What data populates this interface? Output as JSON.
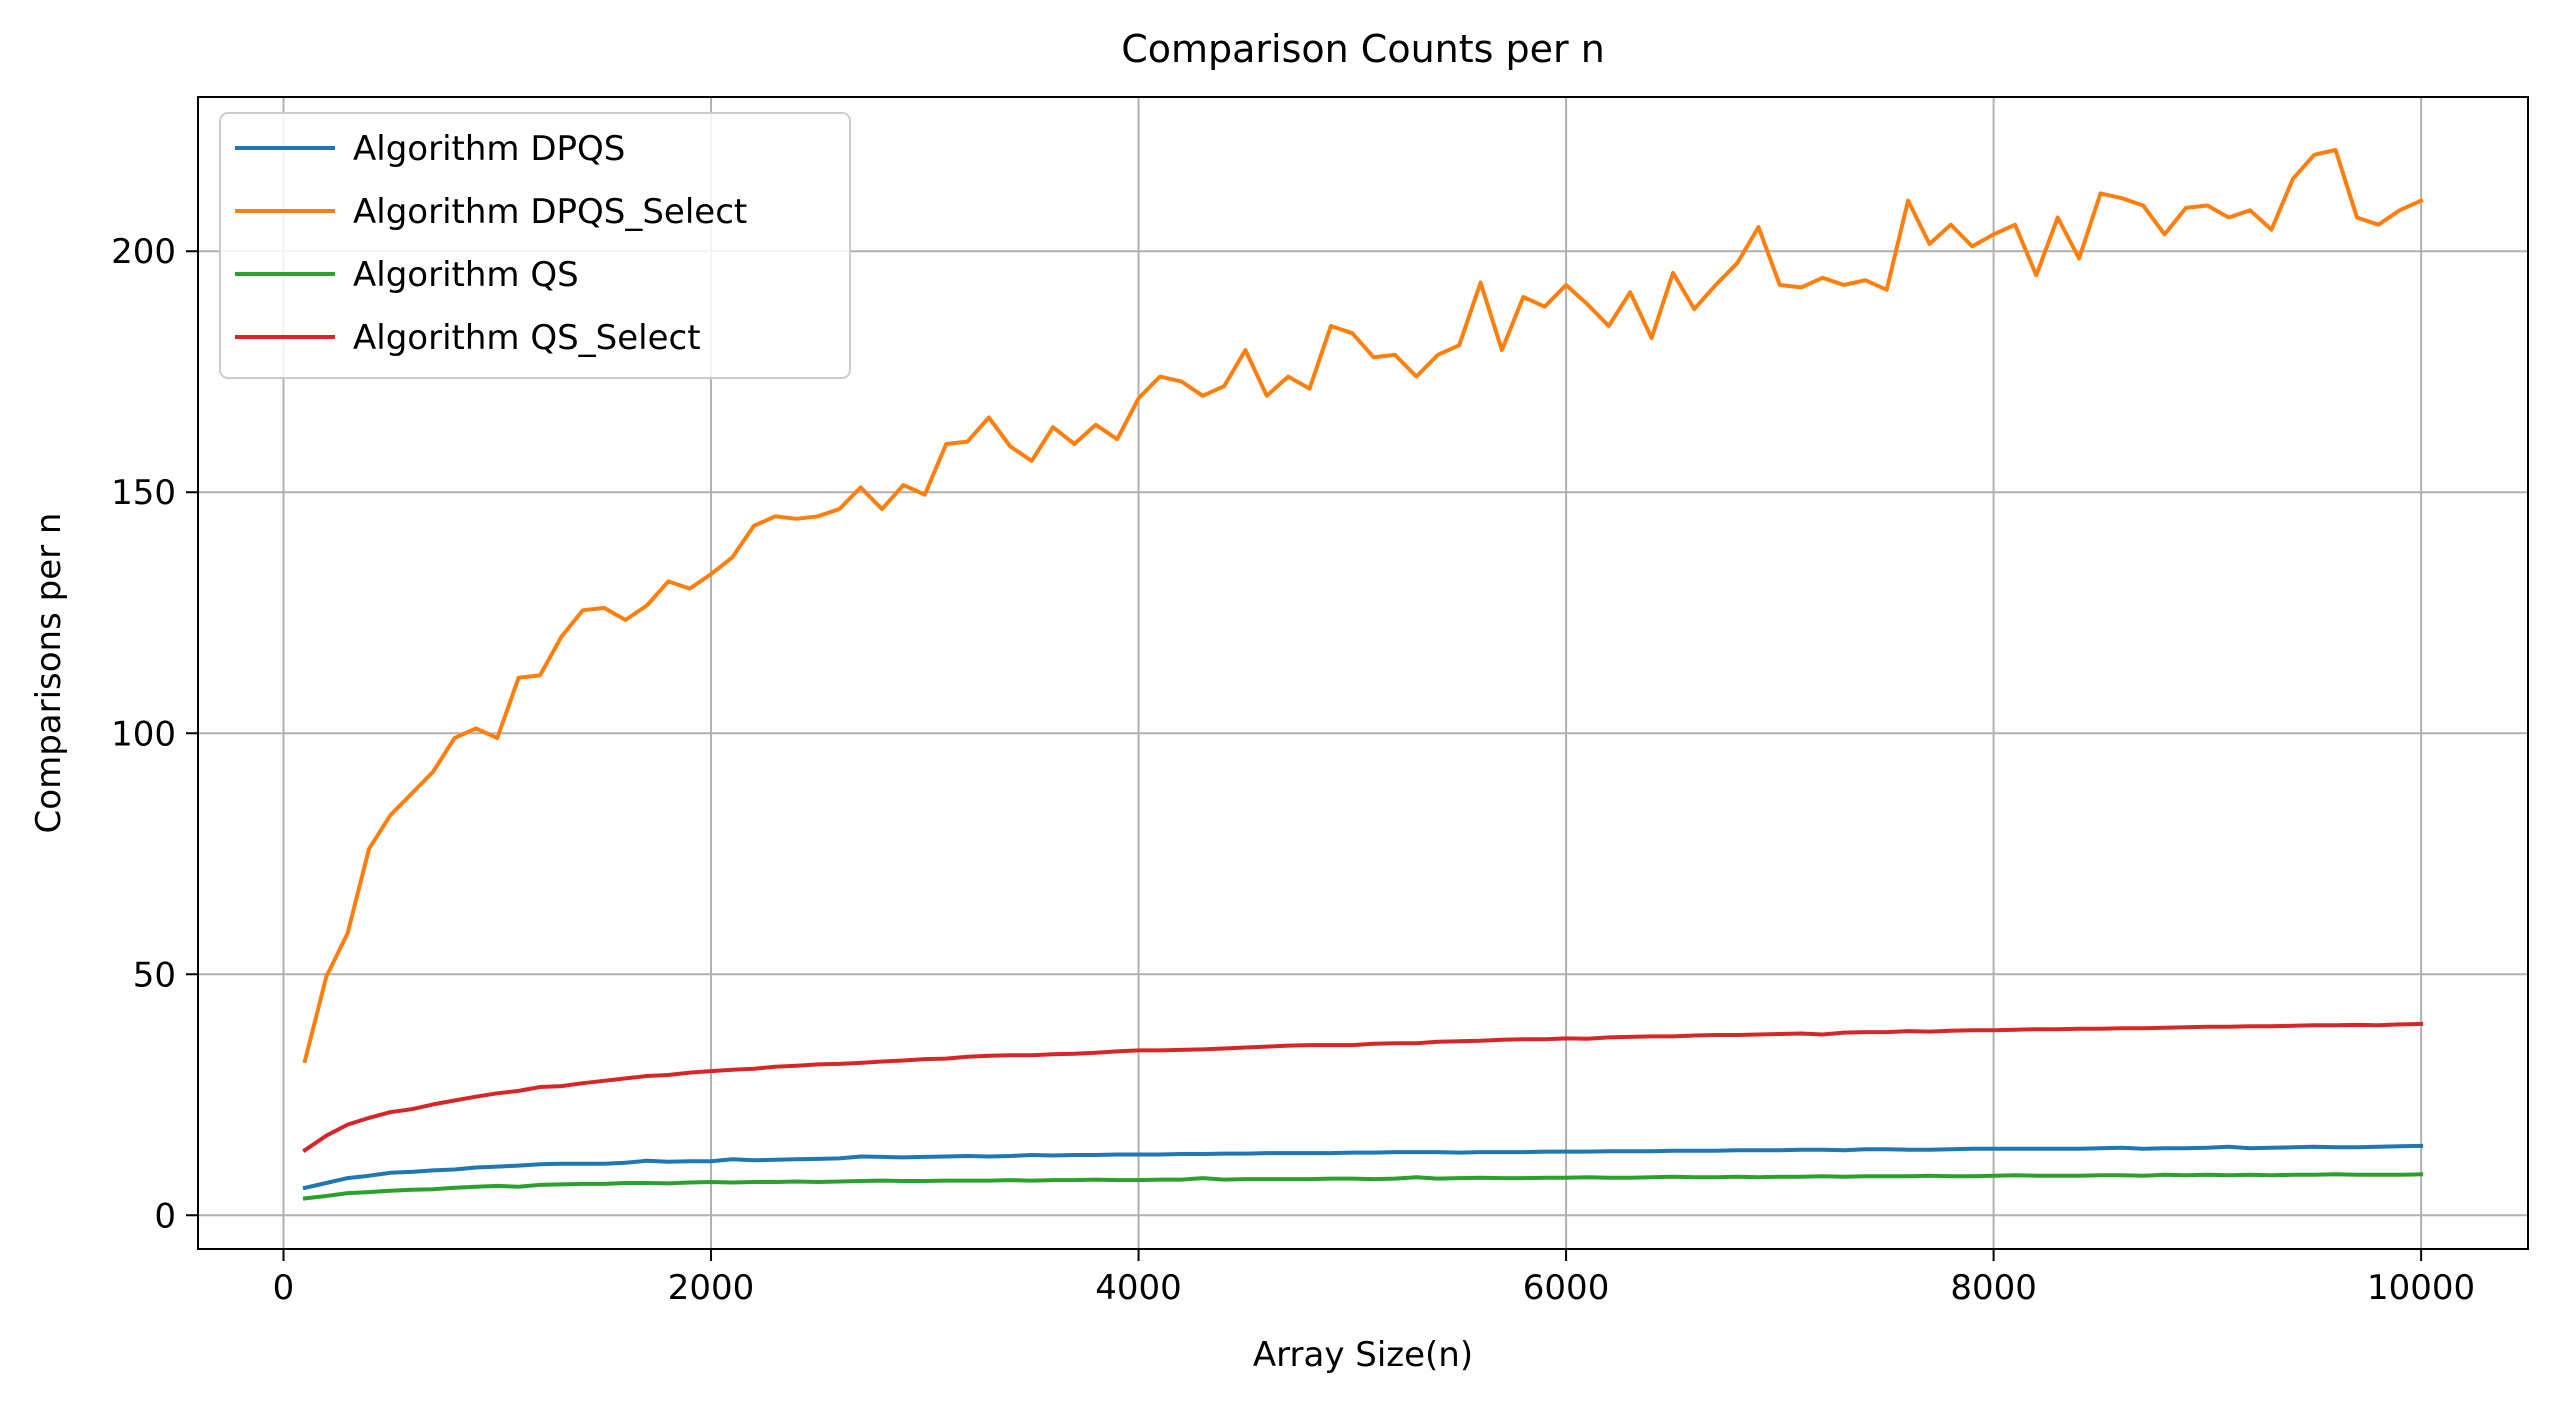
{
  "chart_data": {
    "type": "line",
    "title": "Comparison Counts per n",
    "xlabel": "Array Size(n)",
    "ylabel": "Comparisons per n",
    "xlim": [
      -400,
      10500
    ],
    "ylim": [
      -7,
      232
    ],
    "xticks": [
      0,
      2000,
      4000,
      6000,
      8000,
      10000
    ],
    "xtick_labels": [
      "0",
      "2000",
      "4000",
      "6000",
      "8000",
      "10000"
    ],
    "yticks": [
      0,
      50,
      100,
      150,
      200
    ],
    "ytick_labels": [
      "0",
      "50",
      "100",
      "150",
      "200"
    ],
    "grid": true,
    "legend_position": "top-left",
    "x": [
      100,
      200,
      300,
      400,
      500,
      600,
      700,
      800,
      900,
      1000,
      1100,
      1200,
      1300,
      1400,
      1500,
      1600,
      1700,
      1800,
      1900,
      2000,
      2100,
      2200,
      2300,
      2400,
      2500,
      2600,
      2700,
      2800,
      2900,
      3000,
      3100,
      3200,
      3300,
      3400,
      3500,
      3600,
      3700,
      3800,
      3900,
      4000,
      4100,
      4200,
      4300,
      4400,
      4500,
      4600,
      4700,
      4800,
      4900,
      5000,
      5100,
      5200,
      5300,
      5400,
      5500,
      5600,
      5700,
      5800,
      5900,
      6000,
      6100,
      6200,
      6300,
      6400,
      6500,
      6600,
      6700,
      6800,
      6900,
      7000,
      7100,
      7200,
      7300,
      7400,
      7500,
      7600,
      7700,
      7800,
      7900,
      8000,
      8100,
      8200,
      8300,
      8400,
      8500,
      8600,
      8700,
      8800,
      8900,
      9000,
      9100,
      9200,
      9300,
      9400,
      9500,
      9600,
      9700,
      9800,
      9900,
      10000
    ],
    "series": [
      {
        "name": "Algorithm DPQS",
        "color": "#1f77b4",
        "values": [
          5.7,
          6.7,
          7.7,
          8.2,
          8.8,
          9.0,
          9.3,
          9.5,
          9.9,
          10.1,
          10.3,
          10.6,
          10.7,
          10.7,
          10.7,
          10.9,
          11.3,
          11.1,
          11.2,
          11.2,
          11.6,
          11.4,
          11.5,
          11.6,
          11.7,
          11.8,
          12.2,
          12.1,
          12.0,
          12.1,
          12.2,
          12.3,
          12.2,
          12.3,
          12.5,
          12.4,
          12.5,
          12.5,
          12.6,
          12.6,
          12.6,
          12.7,
          12.7,
          12.8,
          12.8,
          12.9,
          12.9,
          12.9,
          12.9,
          13.0,
          13.0,
          13.1,
          13.1,
          13.1,
          13.0,
          13.1,
          13.1,
          13.1,
          13.2,
          13.2,
          13.2,
          13.3,
          13.3,
          13.3,
          13.4,
          13.4,
          13.4,
          13.5,
          13.5,
          13.5,
          13.6,
          13.6,
          13.5,
          13.7,
          13.7,
          13.6,
          13.6,
          13.7,
          13.8,
          13.8,
          13.8,
          13.8,
          13.8,
          13.8,
          13.9,
          14.0,
          13.8,
          13.9,
          13.9,
          14.0,
          14.2,
          13.9,
          14.0,
          14.1,
          14.2,
          14.1,
          14.1,
          14.2,
          14.3,
          14.4
        ]
      },
      {
        "name": "Algorithm DPQS_Select",
        "color": "#ff7f0e",
        "values": [
          32.0,
          49.5,
          58.5,
          76.0,
          83.0,
          87.5,
          92.0,
          99.0,
          101.0,
          99.0,
          111.5,
          112.0,
          120.0,
          125.5,
          126.0,
          123.5,
          126.5,
          131.5,
          130.0,
          133.0,
          136.5,
          143.0,
          145.0,
          144.5,
          145.0,
          146.5,
          151.0,
          146.5,
          151.5,
          149.5,
          160.0,
          160.5,
          165.5,
          159.5,
          156.5,
          163.5,
          160.0,
          164.0,
          161.0,
          169.5,
          174.0,
          173.0,
          170.0,
          172.0,
          179.5,
          170.0,
          174.0,
          171.5,
          184.5,
          183.0,
          178.0,
          178.5,
          174.0,
          178.5,
          180.5,
          193.5,
          179.5,
          190.5,
          188.5,
          193.0,
          189.0,
          184.5,
          191.5,
          182.0,
          195.5,
          188.0,
          193.0,
          197.5,
          205.0,
          193.0,
          192.5,
          194.5,
          193.0,
          194.0,
          192.0,
          210.5,
          201.5,
          205.5,
          201.0,
          203.5,
          205.5,
          195.0,
          207.0,
          198.5,
          212.0,
          211.0,
          209.5,
          203.5,
          209.0,
          209.5,
          207.0,
          208.5,
          204.5,
          215.0,
          220.0,
          221.0,
          207.0,
          205.5,
          208.5,
          210.5
        ]
      },
      {
        "name": "Algorithm QS",
        "color": "#2ca02c",
        "values": [
          3.5,
          4.0,
          4.6,
          4.8,
          5.1,
          5.3,
          5.4,
          5.7,
          5.9,
          6.1,
          5.9,
          6.3,
          6.4,
          6.5,
          6.5,
          6.7,
          6.7,
          6.6,
          6.8,
          6.9,
          6.8,
          6.9,
          6.9,
          7.0,
          6.9,
          7.0,
          7.1,
          7.2,
          7.1,
          7.1,
          7.2,
          7.2,
          7.2,
          7.3,
          7.2,
          7.3,
          7.3,
          7.4,
          7.3,
          7.3,
          7.4,
          7.4,
          7.7,
          7.4,
          7.5,
          7.5,
          7.5,
          7.5,
          7.6,
          7.6,
          7.5,
          7.6,
          7.9,
          7.6,
          7.7,
          7.8,
          7.7,
          7.7,
          7.8,
          7.8,
          7.9,
          7.8,
          7.8,
          7.9,
          8.0,
          7.9,
          7.9,
          8.0,
          7.9,
          8.0,
          8.0,
          8.1,
          8.0,
          8.1,
          8.1,
          8.1,
          8.2,
          8.1,
          8.1,
          8.2,
          8.3,
          8.2,
          8.2,
          8.2,
          8.3,
          8.3,
          8.2,
          8.4,
          8.3,
          8.4,
          8.3,
          8.4,
          8.3,
          8.4,
          8.4,
          8.5,
          8.4,
          8.4,
          8.4,
          8.5
        ]
      },
      {
        "name": "Algorithm QS_Select",
        "color": "#d62728",
        "values": [
          13.5,
          16.5,
          18.8,
          20.2,
          21.4,
          22.0,
          23.0,
          23.8,
          24.6,
          25.3,
          25.8,
          26.6,
          26.8,
          27.4,
          27.9,
          28.4,
          28.9,
          29.1,
          29.6,
          29.9,
          30.2,
          30.4,
          30.8,
          31.0,
          31.3,
          31.4,
          31.6,
          31.9,
          32.1,
          32.4,
          32.5,
          32.9,
          33.1,
          33.2,
          33.2,
          33.4,
          33.5,
          33.7,
          34.0,
          34.2,
          34.2,
          34.3,
          34.4,
          34.6,
          34.8,
          35.0,
          35.2,
          35.3,
          35.3,
          35.3,
          35.6,
          35.7,
          35.7,
          36.0,
          36.1,
          36.2,
          36.4,
          36.5,
          36.5,
          36.7,
          36.6,
          36.9,
          37.0,
          37.1,
          37.1,
          37.3,
          37.4,
          37.4,
          37.5,
          37.6,
          37.7,
          37.5,
          37.9,
          38.0,
          38.0,
          38.2,
          38.1,
          38.3,
          38.4,
          38.4,
          38.5,
          38.6,
          38.6,
          38.7,
          38.7,
          38.8,
          38.8,
          38.9,
          39.0,
          39.1,
          39.1,
          39.2,
          39.2,
          39.3,
          39.4,
          39.4,
          39.5,
          39.4,
          39.6,
          39.7
        ]
      }
    ]
  }
}
